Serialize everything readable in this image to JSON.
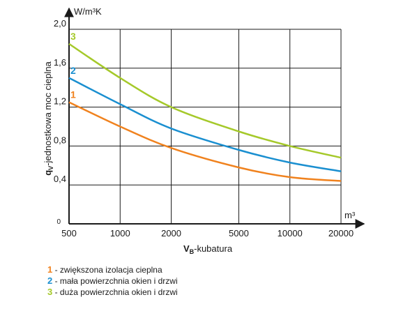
{
  "chart_data": {
    "type": "line",
    "x_scale": "log",
    "x_ticks": [
      "500",
      "1000",
      "2000",
      "5000",
      "10000",
      "20000"
    ],
    "x_tick_values": [
      500,
      1000,
      2000,
      5000,
      10000,
      20000
    ],
    "y_ticks": [
      "0",
      "0,4",
      "0,8",
      "1,2",
      "1,6",
      "2,0"
    ],
    "y_tick_values": [
      0,
      0.4,
      0.8,
      1.2,
      1.6,
      2.0
    ],
    "ylim": [
      0,
      2.0
    ],
    "xlim": [
      500,
      20000
    ],
    "y_unit": "W/m³K",
    "x_unit": "m³",
    "ylabel_main": "q",
    "ylabel_sub": "V",
    "ylabel_rest": "-jednostkowa moc cieplna",
    "xlabel_main": "V",
    "xlabel_sub": "B",
    "xlabel_rest": "-kubatura",
    "grid": true,
    "series": [
      {
        "name": "1",
        "color": "#f0821e",
        "x": [
          500,
          1000,
          2000,
          5000,
          10000,
          20000
        ],
        "y": [
          1.25,
          1.0,
          0.78,
          0.58,
          0.48,
          0.44
        ]
      },
      {
        "name": "2",
        "color": "#1a8fd0",
        "x": [
          500,
          1000,
          2000,
          5000,
          10000,
          20000
        ],
        "y": [
          1.5,
          1.23,
          0.98,
          0.76,
          0.63,
          0.54
        ]
      },
      {
        "name": "3",
        "color": "#a5c92a",
        "x": [
          500,
          1000,
          2000,
          5000,
          10000,
          20000
        ],
        "y": [
          1.85,
          1.5,
          1.2,
          0.95,
          0.8,
          0.68
        ]
      }
    ]
  },
  "legend": [
    {
      "num": "1",
      "text": " - zwiększona izolacja cieplna",
      "color": "#f0821e"
    },
    {
      "num": "2",
      "text": " - mała powierzchnia okien i drzwi",
      "color": "#1a8fd0"
    },
    {
      "num": "3",
      "text": " - duża powierzchnia okien i drzwi",
      "color": "#a5c92a"
    }
  ]
}
